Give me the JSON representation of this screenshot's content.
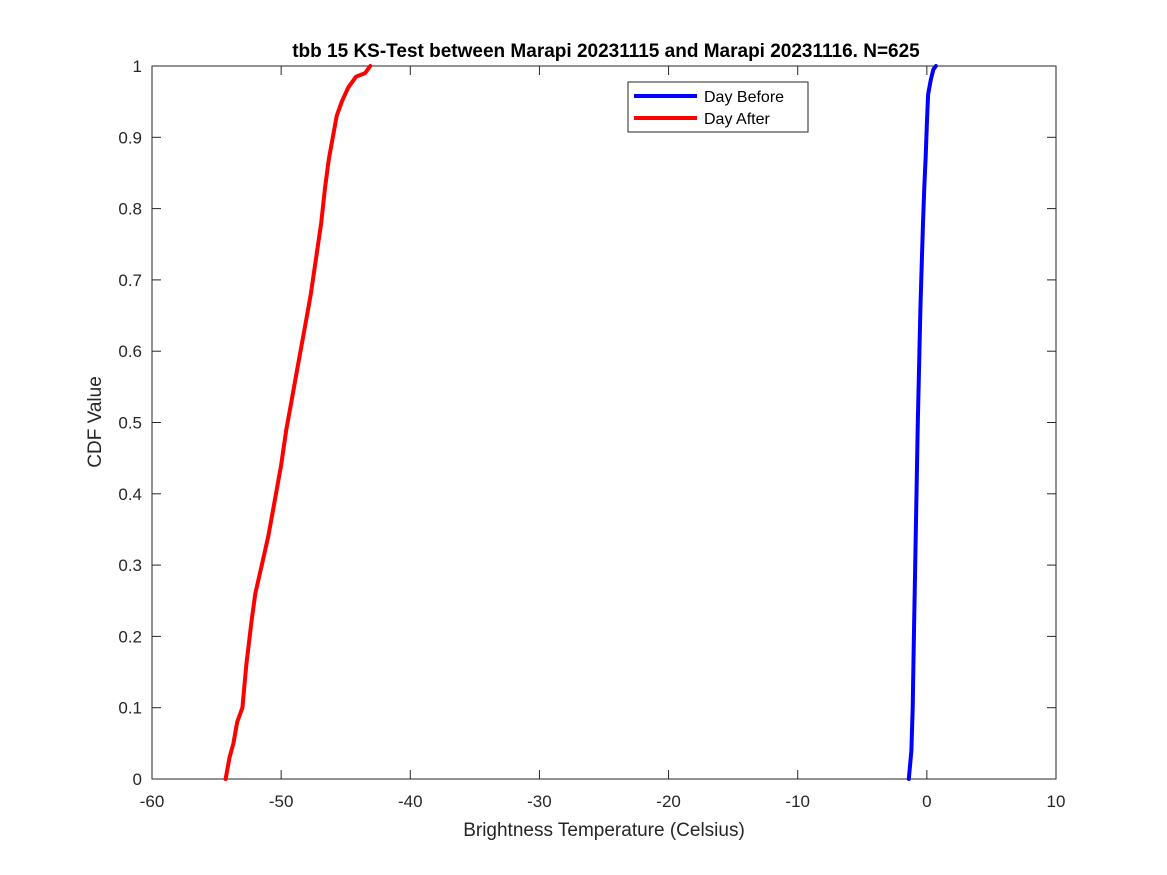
{
  "chart_data": {
    "type": "line",
    "title": "tbb 15 KS-Test between Marapi 20231115 and Marapi 20231116. N=625",
    "xlabel": "Brightness Temperature (Celsius)",
    "ylabel": "CDF Value",
    "xlim": [
      -60,
      10
    ],
    "ylim": [
      0,
      1
    ],
    "xticks": [
      -60,
      -50,
      -40,
      -30,
      -20,
      -10,
      0,
      10
    ],
    "xtick_labels": [
      "-60",
      "-50",
      "-40",
      "-30",
      "-20",
      "-10",
      "0",
      "10"
    ],
    "yticks": [
      0,
      0.1,
      0.2,
      0.3,
      0.4,
      0.5,
      0.6,
      0.7,
      0.8,
      0.9,
      1
    ],
    "ytick_labels": [
      "0",
      "0.1",
      "0.2",
      "0.3",
      "0.4",
      "0.5",
      "0.6",
      "0.7",
      "0.8",
      "0.9",
      "1"
    ],
    "grid": false,
    "legend_position": "top-right",
    "series": [
      {
        "name": "Day Before",
        "color": "#0000ff",
        "x": [
          -1.4,
          -1.2,
          -1.1,
          -1.0,
          -0.9,
          -0.8,
          -0.7,
          -0.6,
          -0.5,
          -0.4,
          -0.3,
          -0.2,
          -0.1,
          0.0,
          0.1,
          0.3,
          0.5,
          0.7
        ],
        "y": [
          0,
          0.04,
          0.1,
          0.2,
          0.3,
          0.4,
          0.5,
          0.58,
          0.66,
          0.72,
          0.78,
          0.83,
          0.87,
          0.92,
          0.96,
          0.98,
          0.995,
          1
        ]
      },
      {
        "name": "Day After",
        "color": "#ff0000",
        "x": [
          -54.3,
          -54.0,
          -53.7,
          -53.4,
          -53.0,
          -52.7,
          -52.3,
          -52.0,
          -51.5,
          -51.0,
          -50.5,
          -50.0,
          -49.6,
          -49.2,
          -48.8,
          -48.5,
          -48.1,
          -47.7,
          -47.3,
          -46.9,
          -46.6,
          -46.3,
          -46.0,
          -45.7,
          -45.3,
          -44.8,
          -44.2,
          -43.5,
          -43.1
        ],
        "y": [
          0,
          0.03,
          0.05,
          0.08,
          0.1,
          0.16,
          0.22,
          0.26,
          0.3,
          0.34,
          0.39,
          0.44,
          0.49,
          0.53,
          0.57,
          0.6,
          0.64,
          0.68,
          0.73,
          0.78,
          0.83,
          0.87,
          0.9,
          0.93,
          0.95,
          0.97,
          0.985,
          0.99,
          1
        ]
      }
    ]
  }
}
